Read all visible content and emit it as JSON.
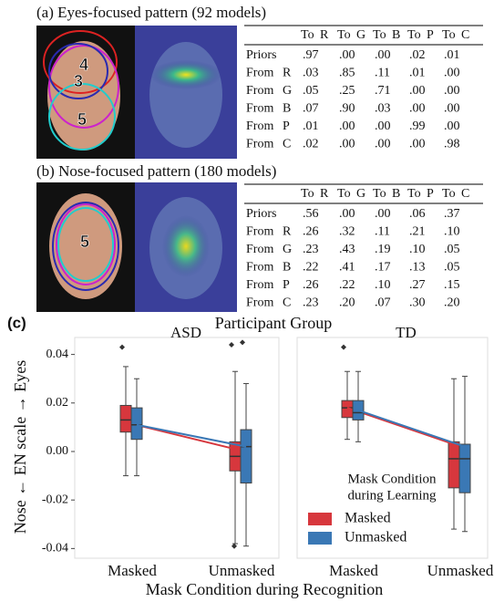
{
  "states": [
    {
      "name": "R",
      "color": "#e3222b"
    },
    {
      "name": "G",
      "color": "#2a9d2a"
    },
    {
      "name": "B",
      "color": "#3b6fcf"
    },
    {
      "name": "P",
      "color": "#cc22cc"
    },
    {
      "name": "C",
      "color": "#1fc6d6"
    }
  ],
  "panels": [
    {
      "title": "(a) Eyes-focused pattern (92 models)",
      "image_labels": [
        "4",
        "3",
        "5"
      ],
      "table": {
        "col_prefix": "To",
        "row_prefix": "From",
        "first_row": "Priors",
        "rows": [
          [
            ".97",
            ".00",
            ".00",
            ".02",
            ".01"
          ],
          [
            ".03",
            ".85",
            ".11",
            ".01",
            ".00"
          ],
          [
            ".05",
            ".25",
            ".71",
            ".00",
            ".00"
          ],
          [
            ".07",
            ".90",
            ".03",
            ".00",
            ".00"
          ],
          [
            ".01",
            ".00",
            ".00",
            ".99",
            ".00"
          ],
          [
            ".02",
            ".00",
            ".00",
            ".00",
            ".98"
          ]
        ]
      }
    },
    {
      "title": "(b) Nose-focused pattern (180 models)",
      "image_labels": [
        "5"
      ],
      "table": {
        "col_prefix": "To",
        "row_prefix": "From",
        "first_row": "Priors",
        "rows": [
          [
            ".56",
            ".00",
            ".00",
            ".06",
            ".37"
          ],
          [
            ".26",
            ".32",
            ".11",
            ".21",
            ".10"
          ],
          [
            ".23",
            ".43",
            ".19",
            ".10",
            ".05"
          ],
          [
            ".22",
            ".41",
            ".17",
            ".13",
            ".05"
          ],
          [
            ".26",
            ".22",
            ".10",
            ".27",
            ".15"
          ],
          [
            ".23",
            ".20",
            ".07",
            ".30",
            ".20"
          ]
        ]
      }
    }
  ],
  "chart_label": "(c)",
  "chart_data": {
    "type": "box",
    "title": "Participant Group",
    "y_label": "Nose ← EN scale → Eyes",
    "x_label": "Mask Condition during Recognition",
    "categories": [
      "Masked",
      "Unmasked"
    ],
    "ylim": [
      -0.044,
      0.047
    ],
    "yticks": [
      -0.04,
      -0.02,
      {
        "value": 0,
        "label": "0.00"
      },
      0.02,
      0.04
    ],
    "legend": {
      "title": [
        "Mask Condition",
        "during Learning"
      ],
      "loc": "lower right"
    },
    "series": [
      {
        "name": "Masked",
        "color": "#d7373d"
      },
      {
        "name": "Unmasked",
        "color": "#3a78b5"
      }
    ],
    "groups": [
      {
        "title": "ASD",
        "boxes": [
          [
            {
              "low": -0.01,
              "q1": 0.008,
              "median": 0.013,
              "q3": 0.019,
              "high": 0.035,
              "outliers": [
                0.043
              ]
            },
            {
              "low": -0.038,
              "q1": -0.008,
              "median": -0.002,
              "q3": 0.004,
              "high": 0.033,
              "outliers": [
                0.044,
                -0.039
              ]
            }
          ],
          [
            {
              "low": -0.01,
              "q1": 0.005,
              "median": 0.011,
              "q3": 0.018,
              "high": 0.03,
              "outliers": []
            },
            {
              "low": -0.039,
              "q1": -0.013,
              "median": 0.002,
              "q3": 0.009,
              "high": 0.028,
              "outliers": [
                0.045
              ]
            }
          ]
        ],
        "means": [
          [
            0.012,
            0.001
          ],
          [
            0.011,
            0.002
          ]
        ]
      },
      {
        "title": "TD",
        "boxes": [
          [
            {
              "low": 0.005,
              "q1": 0.014,
              "median": 0.018,
              "q3": 0.021,
              "high": 0.033,
              "outliers": [
                0.043
              ]
            },
            {
              "low": -0.032,
              "q1": -0.015,
              "median": -0.003,
              "q3": 0.004,
              "high": 0.03,
              "outliers": []
            }
          ],
          [
            {
              "low": 0.004,
              "q1": 0.013,
              "median": 0.016,
              "q3": 0.021,
              "high": 0.033,
              "outliers": []
            },
            {
              "low": -0.033,
              "q1": -0.017,
              "median": -0.003,
              "q3": 0.003,
              "high": 0.031,
              "outliers": []
            }
          ]
        ],
        "means": [
          [
            0.018,
            0.003
          ],
          [
            0.017,
            0.002
          ]
        ]
      }
    ]
  }
}
